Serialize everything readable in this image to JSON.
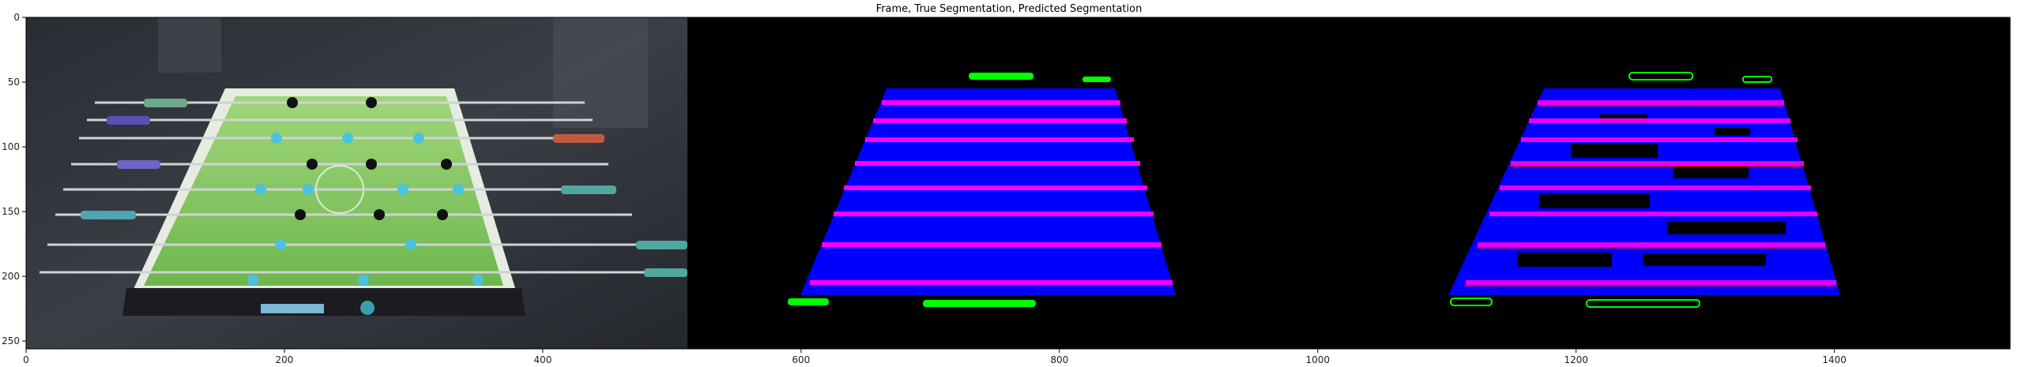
{
  "figure": {
    "title": "Frame, True Segmentation, Predicted Segmentation"
  },
  "axes": {
    "x_ticks": [
      0,
      200,
      400,
      600,
      800,
      1000,
      1200,
      1400
    ],
    "y_ticks": [
      0,
      50,
      100,
      150,
      200,
      250
    ],
    "x_range": [
      0,
      1536
    ],
    "y_range": [
      256,
      0
    ]
  },
  "panels": [
    "Frame",
    "True Segmentation",
    "Predicted Segmentation"
  ],
  "colors": {
    "field": "#0000ff",
    "rods": "#ff00ff",
    "players": "#00ff00",
    "error": "#ff0000",
    "background": "#000000"
  }
}
